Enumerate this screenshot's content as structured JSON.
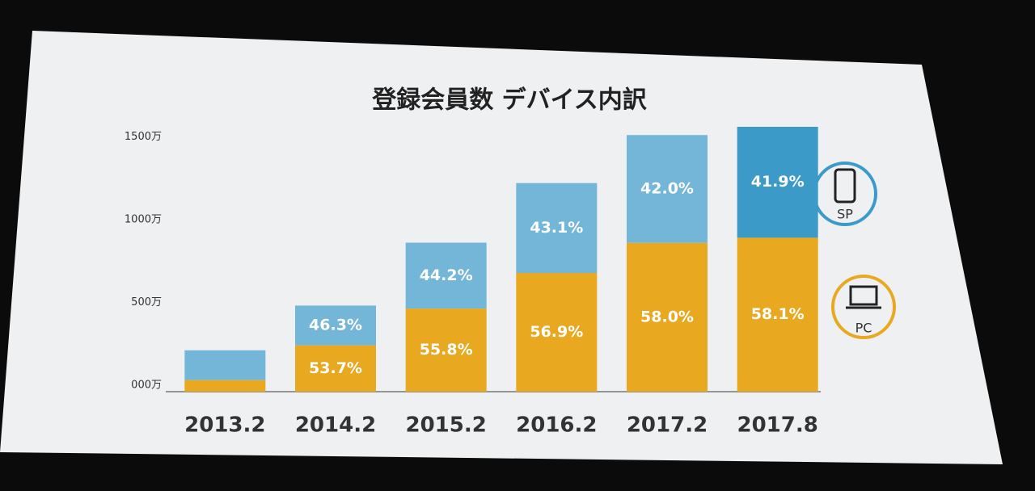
{
  "chart_data": {
    "type": "stacked_bar",
    "title": "登録会員数 デバイス内訳",
    "categories": [
      "2013.2",
      "2014.2",
      "2015.2",
      "2016.2",
      "2017.2",
      "2017.8"
    ],
    "series": [
      {
        "name": "PC",
        "color": "#e8a820",
        "values": [
          70,
          280,
          502,
          717,
          899,
          930
        ],
        "labels": [
          null,
          "53.7%",
          "55.8%",
          "56.9%",
          "58.0%",
          "58.1%"
        ]
      },
      {
        "name": "SP",
        "color": "#74b6d8",
        "colors": [
          "#74b6d8",
          "#74b6d8",
          "#74b6d8",
          "#74b6d8",
          "#74b6d8",
          "#3c9ac8"
        ],
        "values": [
          180,
          240,
          398,
          543,
          651,
          670
        ],
        "labels": [
          null,
          "46.3%",
          "44.2%",
          "43.1%",
          "42.0%",
          "41.9%"
        ]
      }
    ],
    "ylim": [
      0,
      1600
    ],
    "yticks": [
      {
        "value": 0,
        "label": "000万"
      },
      {
        "value": 500,
        "label": "500万"
      },
      {
        "value": 1000,
        "label": "1000万"
      },
      {
        "value": 1500,
        "label": "1500万"
      }
    ]
  }
}
